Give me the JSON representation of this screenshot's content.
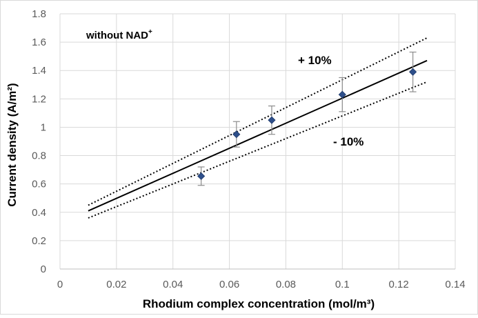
{
  "chart_data": {
    "type": "scatter",
    "xlabel": "Rhodium complex concentration (mol/m³)",
    "ylabel": "Current density (A/m²)",
    "xlim": [
      0,
      0.14
    ],
    "ylim": [
      0,
      1.8
    ],
    "x_ticks": [
      0,
      0.02,
      0.04,
      0.06,
      0.08,
      0.1,
      0.12,
      0.14
    ],
    "y_ticks": [
      0,
      0.2,
      0.4,
      0.6,
      0.8,
      1.0,
      1.2,
      1.4,
      1.6,
      1.8
    ],
    "x_tick_labels": [
      "0",
      "0.02",
      "0.04",
      "0.06",
      "0.08",
      "0.1",
      "0.12",
      "0.14"
    ],
    "y_tick_labels": [
      "0",
      "0.2",
      "0.4",
      "0.6",
      "0.8",
      "1",
      "1.2",
      "1.4",
      "1.6",
      "1.8"
    ],
    "grid": true,
    "points": {
      "x": [
        0.05,
        0.0625,
        0.075,
        0.1,
        0.125
      ],
      "y": [
        0.655,
        0.95,
        1.05,
        1.23,
        1.39
      ],
      "err_low": [
        0.065,
        0.09,
        0.1,
        0.12,
        0.14
      ],
      "err_high": [
        0.065,
        0.09,
        0.1,
        0.12,
        0.14
      ],
      "marker": "diamond",
      "color": "#2E4F8A"
    },
    "lines": [
      {
        "style": "solid",
        "x": [
          0.01,
          0.13
        ],
        "y": [
          0.41,
          1.47
        ]
      },
      {
        "style": "dotted",
        "x": [
          0.01,
          0.13
        ],
        "y": [
          0.45,
          1.63
        ]
      },
      {
        "style": "dotted",
        "x": [
          0.01,
          0.13
        ],
        "y": [
          0.36,
          1.32
        ]
      }
    ],
    "annotations": {
      "condition": "without NAD",
      "condition_sup": "+",
      "upper": "+ 10%",
      "lower": "- 10%"
    }
  }
}
